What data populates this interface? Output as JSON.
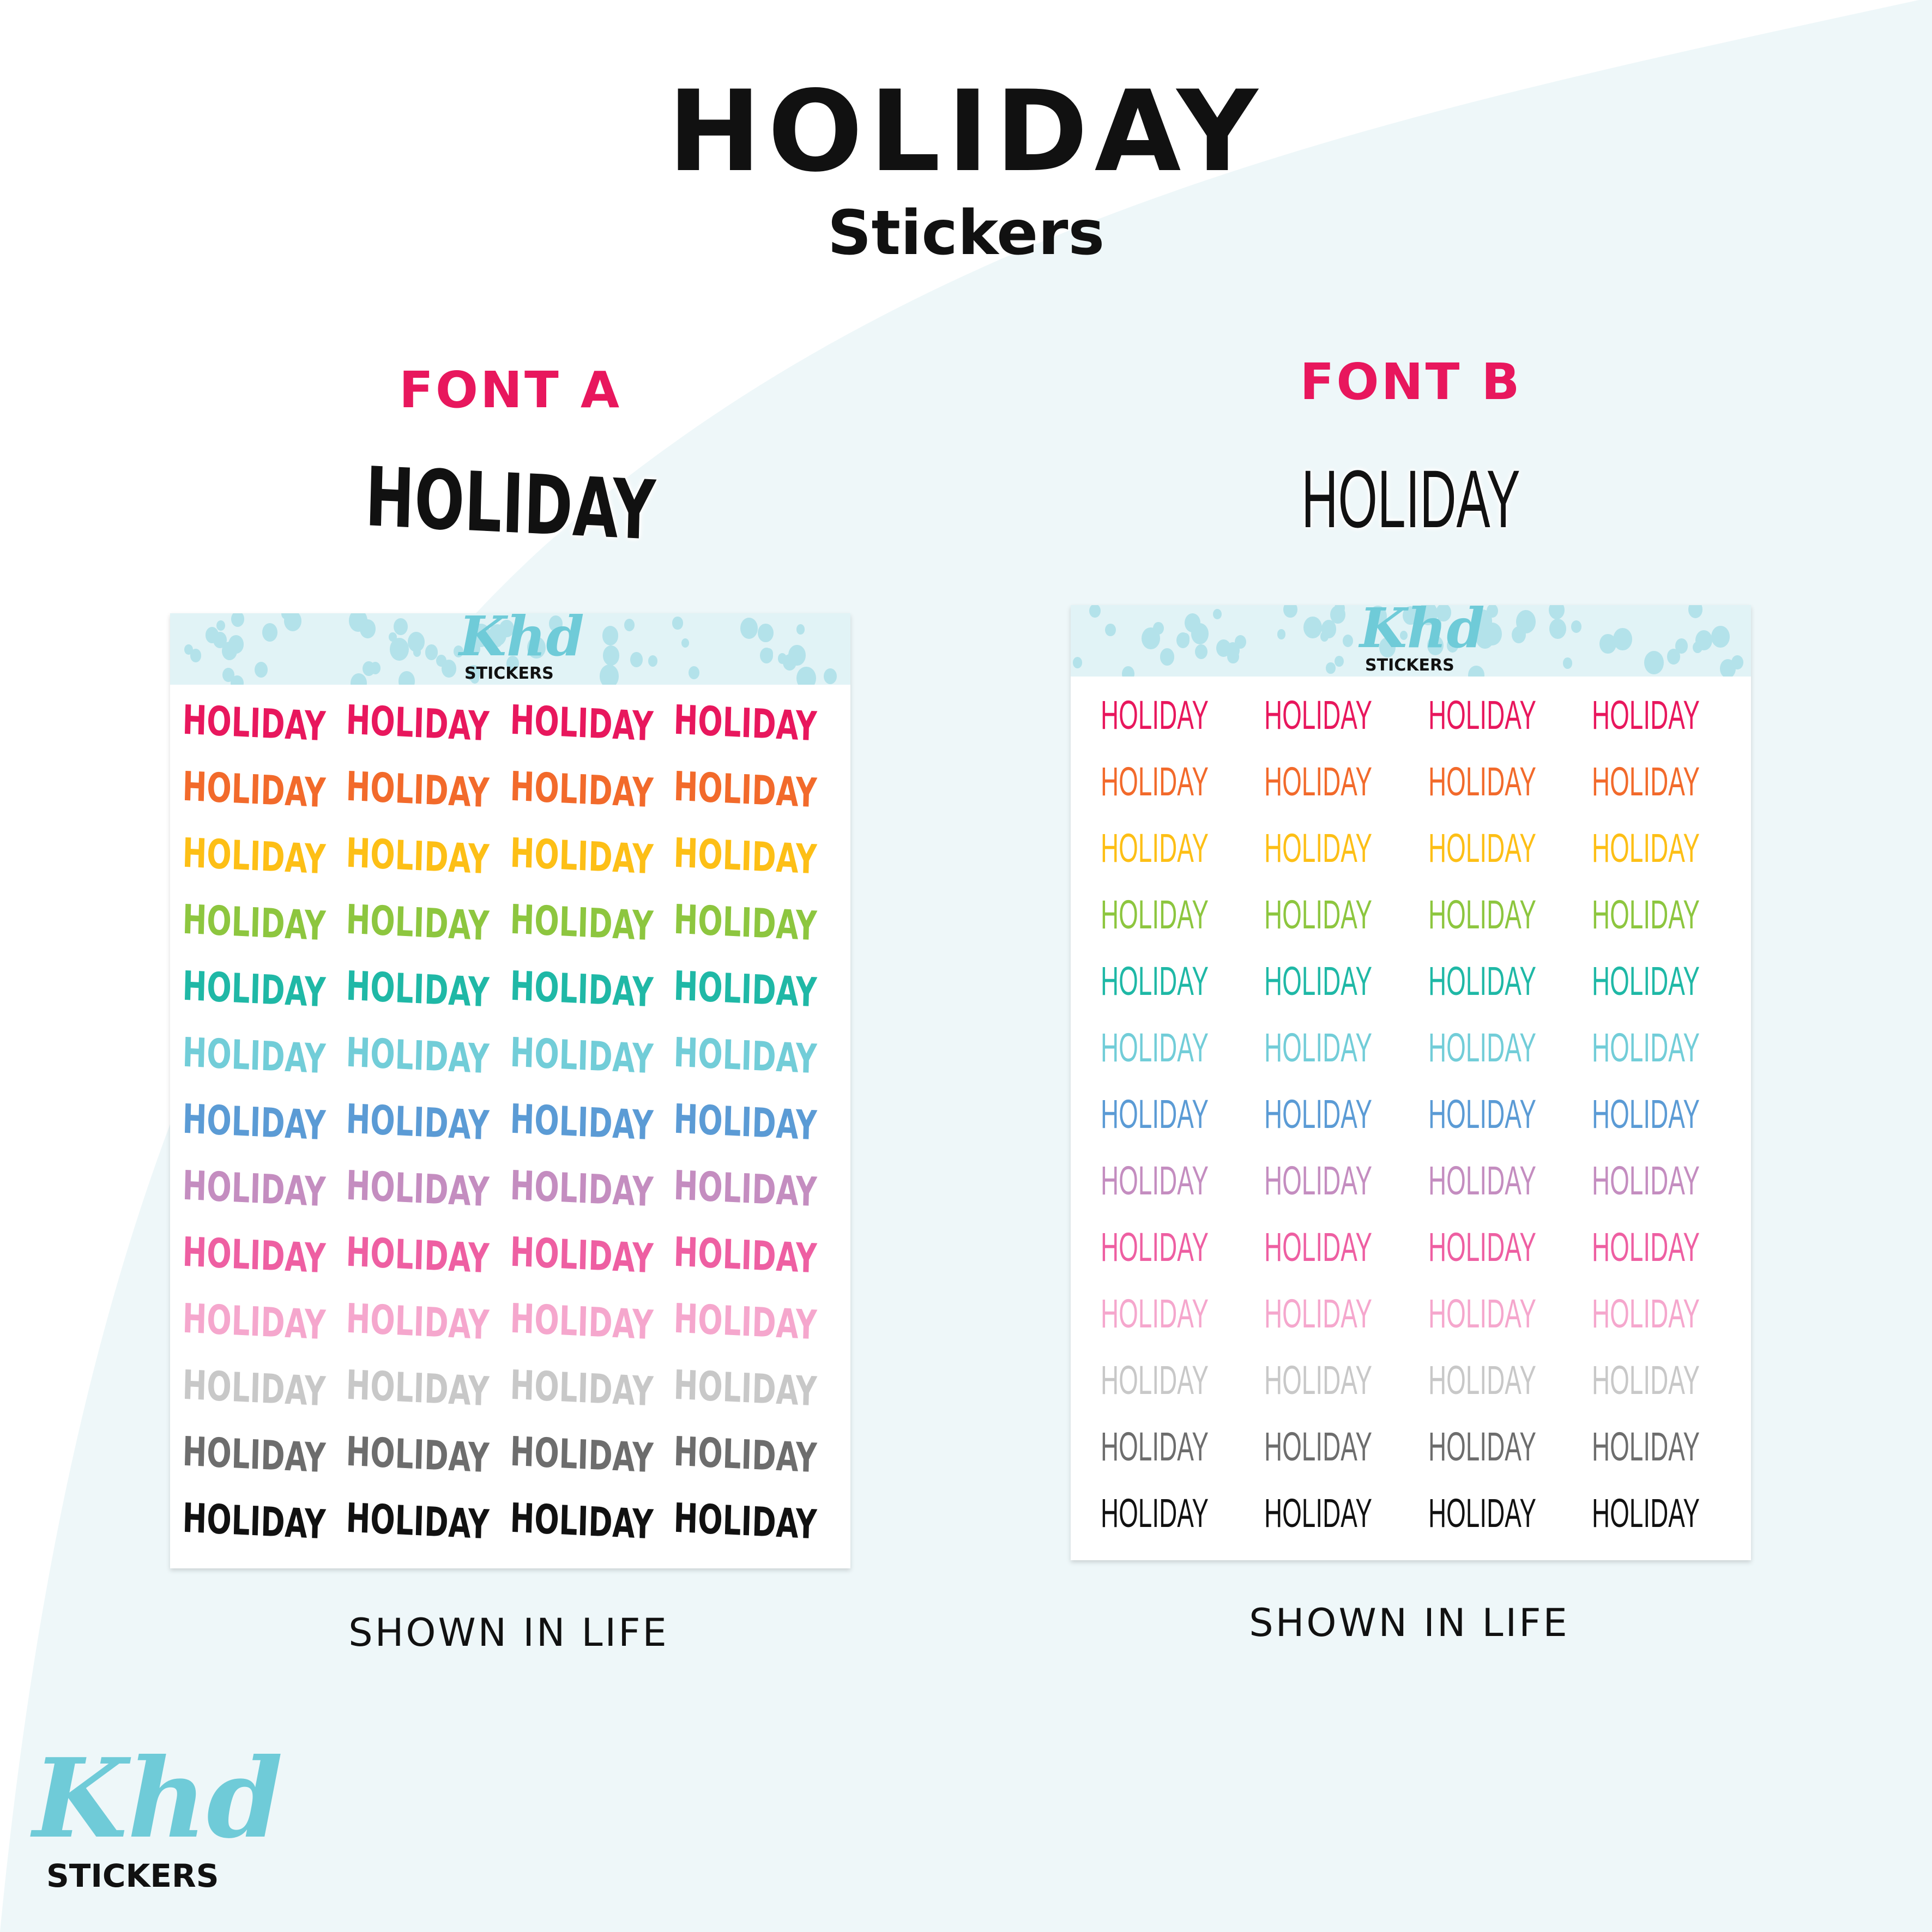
{
  "header": {
    "title": "HOLIDAY",
    "subtitle": "Stickers"
  },
  "brand": {
    "logo_script": "Khd",
    "logo_word": "STICKERS",
    "accent": "#6fcbd8",
    "label_color": "#e8175d"
  },
  "panels": [
    {
      "label": "FONT A",
      "sample": "HOLIDAY",
      "caption": "SHOWN IN LIFE",
      "sheet_logo_script": "Khd",
      "sheet_logo_word": "STICKERS"
    },
    {
      "label": "FONT B",
      "sample": "HOLIDAY",
      "caption": "SHOWN IN LIFE",
      "sheet_logo_script": "Khd",
      "sheet_logo_word": "STICKERS"
    }
  ],
  "sticker_text": "HOLIDAY",
  "columns": 4,
  "row_colors": [
    "#e8175d",
    "#f26a2b",
    "#fdbf16",
    "#8dc63f",
    "#1fb8a6",
    "#72cdd8",
    "#5b9bd5",
    "#c48dc0",
    "#ee5fa2",
    "#f5a7cd",
    "#c8c8c8",
    "#6d6d6d",
    "#111111"
  ]
}
